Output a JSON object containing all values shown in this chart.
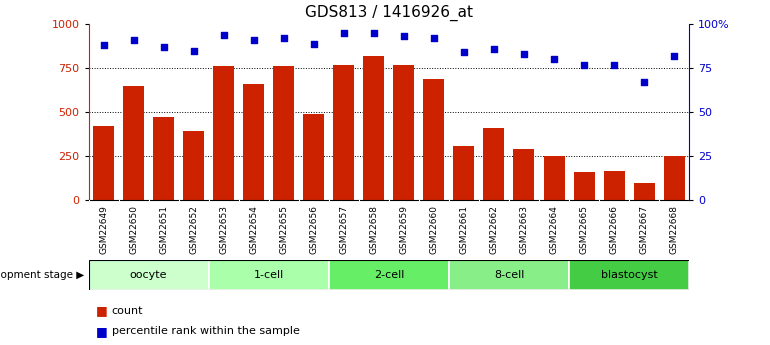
{
  "title": "GDS813 / 1416926_at",
  "samples": [
    "GSM22649",
    "GSM22650",
    "GSM22651",
    "GSM22652",
    "GSM22653",
    "GSM22654",
    "GSM22655",
    "GSM22656",
    "GSM22657",
    "GSM22658",
    "GSM22659",
    "GSM22660",
    "GSM22661",
    "GSM22662",
    "GSM22663",
    "GSM22664",
    "GSM22665",
    "GSM22666",
    "GSM22667",
    "GSM22668"
  ],
  "counts": [
    420,
    650,
    470,
    390,
    760,
    660,
    760,
    490,
    770,
    820,
    770,
    690,
    310,
    410,
    290,
    250,
    160,
    165,
    100,
    250
  ],
  "percentiles": [
    88,
    91,
    87,
    85,
    94,
    91,
    92,
    89,
    95,
    95,
    93,
    92,
    84,
    86,
    83,
    80,
    77,
    77,
    67,
    82
  ],
  "groups": [
    {
      "label": "oocyte",
      "start": 0,
      "end": 3,
      "color": "#ccffcc"
    },
    {
      "label": "1-cell",
      "start": 4,
      "end": 7,
      "color": "#aaffaa"
    },
    {
      "label": "2-cell",
      "start": 8,
      "end": 11,
      "color": "#66ee66"
    },
    {
      "label": "8-cell",
      "start": 12,
      "end": 15,
      "color": "#88ee88"
    },
    {
      "label": "blastocyst",
      "start": 16,
      "end": 19,
      "color": "#44cc44"
    }
  ],
  "bar_color": "#cc2200",
  "dot_color": "#0000cc",
  "left_ylim": [
    0,
    1000
  ],
  "right_ylim": [
    0,
    100
  ],
  "left_yticks": [
    0,
    250,
    500,
    750,
    1000
  ],
  "right_yticks": [
    0,
    25,
    50,
    75,
    100
  ],
  "right_yticklabels": [
    "0",
    "25",
    "50",
    "75",
    "100%"
  ],
  "grid_values": [
    250,
    500,
    750
  ],
  "background_color": "#ffffff",
  "title_fontsize": 11,
  "bar_width": 0.7,
  "xtick_bg": "#cccccc",
  "dev_stage_label": "development stage"
}
